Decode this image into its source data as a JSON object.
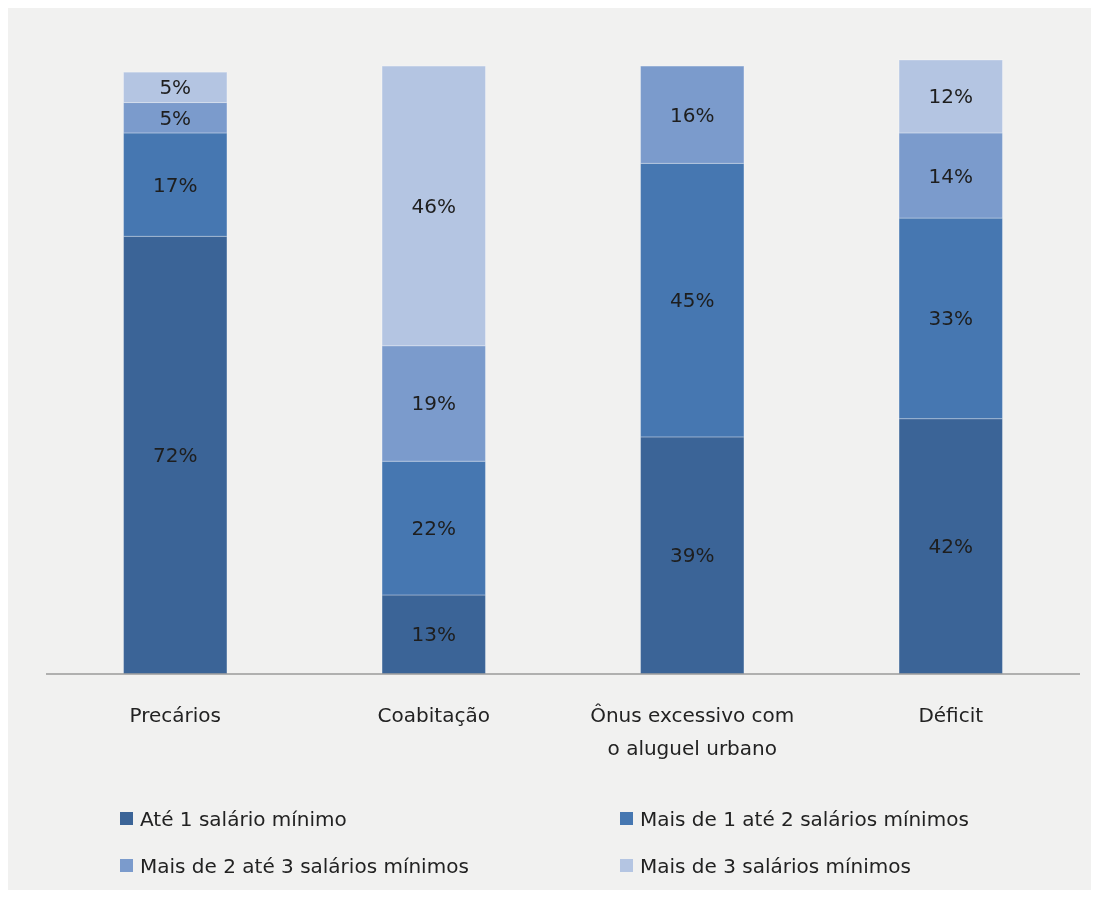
{
  "chart_data": {
    "type": "bar",
    "stacked": true,
    "legend": "bottom",
    "categories": [
      "Precários",
      "Coabitação",
      "Ônus excessivo com o aluguel urbano",
      "Déficit"
    ],
    "series": [
      {
        "name": "Até 1 salário mínimo",
        "color": "#3b6497",
        "values": [
          72,
          13,
          39,
          42
        ],
        "value_labels": [
          "72%",
          "13%",
          "39%",
          "42%"
        ]
      },
      {
        "name": "Mais de 1 até 2 salários mínimos",
        "color": "#4677b1",
        "values": [
          17,
          22,
          45,
          33
        ],
        "value_labels": [
          "17%",
          "22%",
          "45%",
          "33%"
        ]
      },
      {
        "name": "Mais de 2 até 3 salários mínimos",
        "color": "#7b9bcc",
        "values": [
          5,
          19,
          16,
          14
        ],
        "value_labels": [
          "5%",
          "19%",
          "16%",
          "14%"
        ]
      },
      {
        "name": "Mais de 3 salários mínimos",
        "color": "#b4c5e2",
        "values": [
          5,
          46,
          null,
          12
        ],
        "value_labels": [
          "5%",
          "46%",
          null,
          "12%"
        ]
      }
    ]
  }
}
